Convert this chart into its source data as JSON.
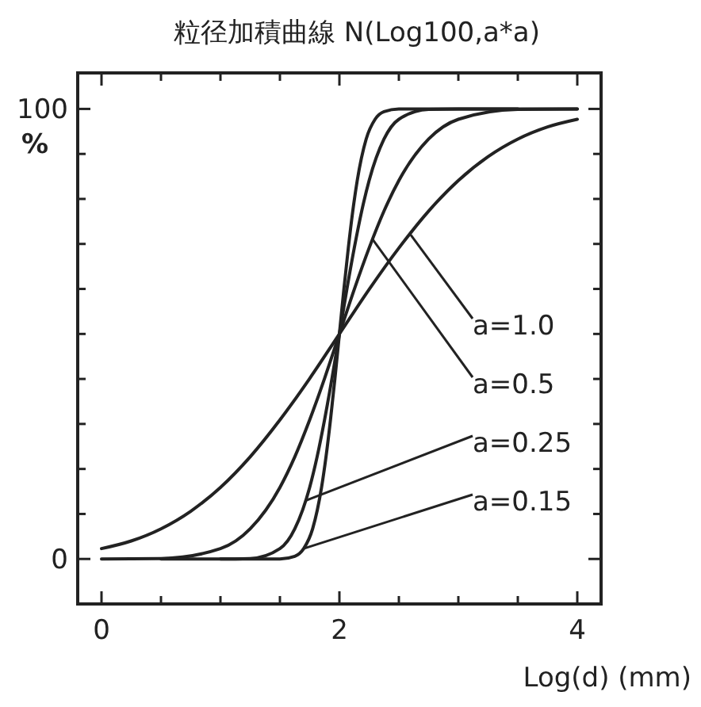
{
  "chart_data": {
    "type": "line",
    "title": "粒径加積曲線 N(Log100,a*a)",
    "xlabel": "Log(d)  (mm)",
    "ylabel": "%",
    "xlim": [
      -0.2,
      4.2
    ],
    "ylim": [
      -10,
      108
    ],
    "xticks": [
      0,
      {
        "value": 0.5,
        "label": null
      },
      {
        "value": 1,
        "label": null
      },
      {
        "value": 1.5,
        "label": null
      },
      2,
      {
        "value": 2.5,
        "label": null
      },
      {
        "value": 3,
        "label": null
      },
      {
        "value": 3.5,
        "label": null
      },
      4
    ],
    "yticks": [
      0,
      {
        "value": 10,
        "label": null
      },
      {
        "value": 20,
        "label": null
      },
      {
        "value": 30,
        "label": null
      },
      {
        "value": 40,
        "label": null
      },
      {
        "value": 50,
        "label": null
      },
      {
        "value": 60,
        "label": null
      },
      {
        "value": 70,
        "label": null
      },
      {
        "value": 80,
        "label": null
      },
      {
        "value": 90,
        "label": null
      },
      100
    ],
    "marker": "none",
    "line_style": "solid",
    "grid": false,
    "series": [
      {
        "color": "#222222",
        "x": [
          0,
          0.25,
          0.5,
          0.75,
          1,
          1.25,
          1.5,
          1.75,
          2,
          2.25,
          2.5,
          2.75,
          3,
          3.25,
          3.5,
          3.75,
          4
        ],
        "values": [
          2.3,
          4.0,
          6.7,
          10.6,
          15.9,
          22.7,
          30.9,
          40.1,
          50,
          59.9,
          69.1,
          77.3,
          84.1,
          89.4,
          93.3,
          96.0,
          97.7
        ]
      },
      {
        "color": "#222222",
        "x": [
          0,
          0.5,
          1,
          1.25,
          1.5,
          1.625,
          1.75,
          1.875,
          2,
          2.125,
          2.25,
          2.375,
          2.5,
          2.75,
          3,
          3.5,
          4
        ],
        "values": [
          0,
          0.1,
          2.3,
          6.7,
          15.9,
          22.7,
          30.9,
          40.1,
          50,
          59.9,
          69.1,
          77.3,
          84.1,
          93.3,
          97.7,
          99.9,
          100
        ]
      },
      {
        "color": "#222222",
        "x": [
          0.5,
          1,
          1.25,
          1.5,
          1.625,
          1.75,
          1.8125,
          1.875,
          1.9375,
          2,
          2.0625,
          2.125,
          2.1875,
          2.25,
          2.375,
          2.5,
          2.75,
          3,
          4
        ],
        "values": [
          0,
          0,
          0.1,
          2.3,
          6.7,
          15.9,
          22.7,
          30.9,
          40.1,
          50,
          59.9,
          69.1,
          77.3,
          84.1,
          93.3,
          97.7,
          99.9,
          100,
          100
        ]
      },
      {
        "color": "#222222",
        "x": [
          1,
          1.5,
          1.625,
          1.7,
          1.775,
          1.85,
          1.8875,
          1.925,
          1.9625,
          2,
          2.0375,
          2.075,
          2.1125,
          2.15,
          2.225,
          2.3,
          2.375,
          2.5,
          3,
          3.5
        ],
        "values": [
          0,
          0,
          0.6,
          2.3,
          6.7,
          15.9,
          22.7,
          30.9,
          40.1,
          50,
          59.9,
          69.1,
          77.3,
          84.1,
          93.3,
          97.7,
          99.4,
          100,
          100,
          100
        ]
      }
    ],
    "annotations": [
      {
        "text": "a=1.0",
        "x": 2.6,
        "y": 72
      },
      {
        "text": "a=0.5",
        "x": 2.28,
        "y": 71
      },
      {
        "text": "a=0.25",
        "x": 1.72,
        "y": 13
      },
      {
        "text": "a=0.15",
        "x": 1.7,
        "y": 2.3
      }
    ]
  }
}
